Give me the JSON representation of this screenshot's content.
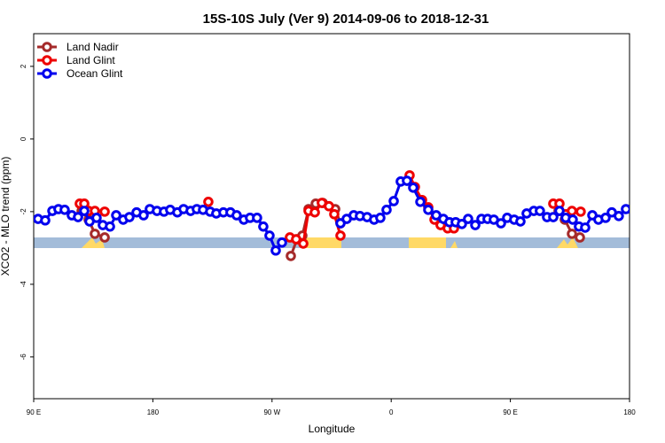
{
  "chart_data": {
    "type": "line",
    "title": "15S-10S July (Ver 9)   2014-09-06 to 2018-12-31",
    "xlabel": "Longitude",
    "ylabel": "XCO2 - MLO trend (ppm)",
    "xlim": [
      90,
      540
    ],
    "xticks": [
      {
        "value": 90,
        "label": "90 E"
      },
      {
        "value": 180,
        "label": "180"
      },
      {
        "value": 270,
        "label": "90 W"
      },
      {
        "value": 360,
        "label": "0"
      },
      {
        "value": 450,
        "label": "90 E"
      },
      {
        "value": 540,
        "label": "180"
      }
    ],
    "ylim": [
      -7.15,
      2.9
    ],
    "yticks": [
      2,
      0,
      -2,
      -4,
      -6
    ],
    "legend": "top-left",
    "series": [
      {
        "name": "Land Nadir",
        "color": "#a52a2a",
        "x": [
          126.2,
          131.5,
          136.2,
          143.6,
          200,
          284.2,
          288.9,
          292.9,
          297.6,
          303.0,
          308.3,
          317.7,
          321.7,
          400,
          486.4,
          491.1,
          496.5,
          502.5
        ],
        "values": [
          -1.98,
          -2.22,
          -2.61,
          -2.71,
          null,
          -3.22,
          -2.76,
          -2.66,
          -1.93,
          -1.78,
          -1.76,
          -1.93,
          -2.32,
          null,
          -1.98,
          -2.22,
          -2.61,
          -2.71
        ]
      },
      {
        "name": "Land Glint",
        "color": "#ee0000",
        "x": [
          124.8,
          128.2,
          131.5,
          136.2,
          143.6,
          180,
          221.9,
          250,
          283.5,
          288.2,
          293.6,
          297.6,
          302.3,
          307.6,
          313.0,
          317.0,
          321.7,
          350,
          373.9,
          377.9,
          383.3,
          388.0,
          392.7,
          397.3,
          402.7,
          407.4,
          450,
          482.4,
          487.1,
          491.8,
          496.5,
          503.1
        ],
        "values": [
          -1.78,
          -1.78,
          -1.98,
          -1.98,
          -2.0,
          null,
          -1.73,
          null,
          -2.71,
          -2.76,
          -2.88,
          -1.98,
          -2.02,
          -1.76,
          -1.85,
          -2.07,
          -2.66,
          null,
          -1.0,
          -1.32,
          -1.68,
          -1.88,
          -2.22,
          -2.37,
          -2.46,
          -2.46,
          null,
          -1.78,
          -1.78,
          -2.07,
          -1.98,
          -2.0
        ]
      },
      {
        "name": "Ocean Glint",
        "color": "#0000ee",
        "x": [
          93.3,
          98.7,
          104.1,
          108.7,
          113.4,
          118.8,
          123.5,
          128.2,
          132.2,
          137.5,
          142.2,
          147.6,
          152.3,
          157.6,
          162.3,
          167.7,
          173.0,
          177.7,
          183.1,
          188.4,
          193.1,
          198.5,
          203.2,
          208.5,
          213.2,
          217.9,
          223.3,
          227.9,
          233.3,
          238.6,
          243.3,
          248.7,
          253.4,
          258.7,
          263.4,
          268.1,
          272.8,
          277.5,
          300,
          321.7,
          326.4,
          331.7,
          336.4,
          341.8,
          347.1,
          351.8,
          356.5,
          361.9,
          367.2,
          371.9,
          376.6,
          382.0,
          388.0,
          394.0,
          399.4,
          404.0,
          408.7,
          413.4,
          418.1,
          423.5,
          428.2,
          432.8,
          437.5,
          442.9,
          447.6,
          452.9,
          457.6,
          462.3,
          467.7,
          472.3,
          477.7,
          482.4,
          487.1,
          491.8,
          497.1,
          501.8,
          506.5,
          511.9,
          516.5,
          521.9,
          526.6,
          531.9,
          537.3
        ],
        "values": [
          -2.2,
          -2.24,
          -1.98,
          -1.93,
          -1.95,
          -2.1,
          -2.15,
          -1.98,
          -2.27,
          -2.17,
          -2.37,
          -2.41,
          -2.1,
          -2.22,
          -2.15,
          -2.02,
          -2.1,
          -1.93,
          -1.98,
          -2.0,
          -1.95,
          -2.02,
          -1.93,
          -1.98,
          -1.93,
          -1.95,
          -2.0,
          -2.05,
          -2.02,
          -2.02,
          -2.1,
          -2.22,
          -2.17,
          -2.17,
          -2.41,
          -2.66,
          -3.07,
          -2.85,
          null,
          -2.32,
          -2.2,
          -2.1,
          -2.12,
          -2.15,
          -2.22,
          -2.17,
          -1.95,
          -1.71,
          -1.17,
          -1.15,
          -1.34,
          -1.73,
          -1.95,
          -2.1,
          -2.2,
          -2.29,
          -2.29,
          -2.34,
          -2.2,
          -2.37,
          -2.2,
          -2.2,
          -2.22,
          -2.32,
          -2.17,
          -2.22,
          -2.27,
          -2.05,
          -1.98,
          -1.98,
          -2.15,
          -2.15,
          -1.98,
          -2.17,
          -2.22,
          -2.41,
          -2.44,
          -2.1,
          -2.22,
          -2.17,
          -2.02,
          -2.12,
          -1.93
        ]
      }
    ]
  }
}
